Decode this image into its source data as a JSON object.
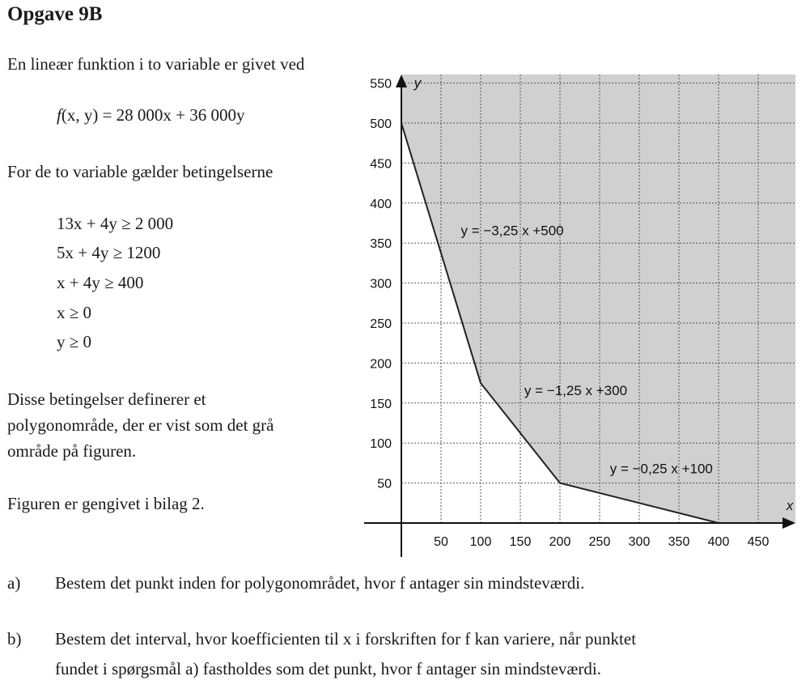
{
  "title": "Opgave 9B",
  "intro": "En lineær funktion i to variable er givet ved",
  "function": {
    "lhs_name": "f",
    "lhs_args": "(x, y)",
    "rhs": "= 28 000x + 36 000y"
  },
  "conditions_intro": "For de to variable gælder betingelserne",
  "conditions": [
    "13x + 4y ≥ 2 000",
    "5x + 4y ≥ 1200",
    "x + 4y ≥ 400",
    "x ≥ 0",
    "y ≥ 0"
  ],
  "description_lines": [
    "Disse betingelser definerer et",
    "polygonområde, der er vist som det grå",
    "område på figuren."
  ],
  "appendix_note": "Figuren er gengivet i bilag 2.",
  "questions": [
    {
      "label": "a)",
      "lines": [
        "Bestem det punkt inden for polygonområdet, hvor f antager sin mindsteværdi."
      ]
    },
    {
      "label": "b)",
      "lines": [
        "Bestem det interval, hvor koefficienten til x i forskriften for f kan variere, når punktet",
        "fundet i spørgsmål a) fastholdes som det punkt, hvor f antager sin mindsteværdi."
      ]
    }
  ],
  "chart_data": {
    "type": "line",
    "xlabel": "x",
    "ylabel": "y",
    "xlim": [
      0,
      490
    ],
    "ylim": [
      -42,
      560
    ],
    "x_ticks": [
      50,
      100,
      150,
      200,
      250,
      300,
      350,
      400,
      450
    ],
    "y_ticks": [
      50,
      100,
      150,
      200,
      250,
      300,
      350,
      400,
      450,
      500,
      550
    ],
    "grid": true,
    "grid_style": "dotted",
    "feasible_region_color": "#d0d0d0",
    "boundary_vertices": [
      [
        0,
        500
      ],
      [
        100,
        175
      ],
      [
        200,
        50
      ],
      [
        400,
        0
      ]
    ],
    "boundary_lines": [
      {
        "label": "y = −3,25 x +500",
        "slope": -3.25,
        "intercept": 500,
        "x_range": [
          0,
          100
        ],
        "label_at": [
          75,
          360
        ]
      },
      {
        "label": "y = −1,25 x +300",
        "slope": -1.25,
        "intercept": 300,
        "x_range": [
          100,
          200
        ],
        "label_at": [
          155,
          160
        ]
      },
      {
        "label": "y = −0,25 x +100",
        "slope": -0.25,
        "intercept": 100,
        "x_range": [
          200,
          400
        ],
        "label_at": [
          263,
          62
        ]
      }
    ]
  }
}
